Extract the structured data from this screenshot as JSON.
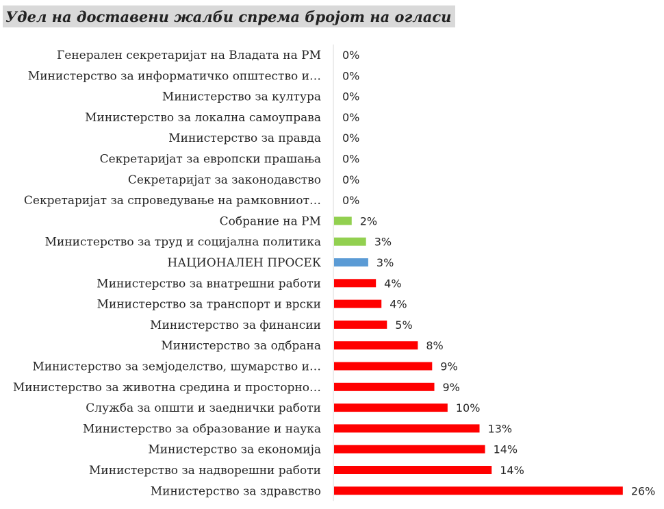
{
  "chart_data": {
    "type": "bar",
    "orientation": "horizontal",
    "title": "Удел на доставени жалби спрема бројот на огласи",
    "xlabel": "",
    "ylabel": "",
    "xlim": [
      0,
      26
    ],
    "grid": false,
    "legend": "none",
    "categories": [
      "Генерален секретаријат на Владата на РМ",
      "Министерство за информатичко општество и…",
      "Министерство за култура",
      "Министерство за локална самоуправа",
      "Министерство за правда",
      "Секретаријат за европски прашања",
      "Секретаријат за законодавство",
      "Секретаријат за спроведување на рамковниот…",
      "Собрание на РМ",
      "Министерство за труд и социјална политика",
      "НАЦИОНАЛЕН ПРОСЕК",
      "Министерство за внатрешни работи",
      "Министерство за транспорт и врски",
      "Министерство за финансии",
      "Министерство за одбрана",
      "Министерство за земјоделство, шумарство и…",
      "Министерство за животна средина и просторно…",
      "Служба за општи и заеднички работи",
      "Министерство за образование и наука",
      "Министерство за економија",
      "Министерство за надворешни работи",
      "Министерство за здравство"
    ],
    "values": [
      0,
      0,
      0,
      0,
      0,
      0,
      0,
      0,
      1.6,
      2.9,
      3.1,
      3.8,
      4.3,
      4.8,
      7.6,
      8.9,
      9.1,
      10.3,
      13.2,
      13.7,
      14.3,
      26.2
    ],
    "value_labels": [
      "0%",
      "0%",
      "0%",
      "0%",
      "0%",
      "0%",
      "0%",
      "0%",
      "2%",
      "3%",
      "3%",
      "4%",
      "4%",
      "5%",
      "8%",
      "9%",
      "9%",
      "10%",
      "13%",
      "14%",
      "14%",
      "26%"
    ],
    "colors": [
      "#ff0000",
      "#ff0000",
      "#ff0000",
      "#ff0000",
      "#ff0000",
      "#ff0000",
      "#ff0000",
      "#ff0000",
      "#92d050",
      "#92d050",
      "#5b9bd5",
      "#ff0000",
      "#ff0000",
      "#ff0000",
      "#ff0000",
      "#ff0000",
      "#ff0000",
      "#ff0000",
      "#ff0000",
      "#ff0000",
      "#ff0000",
      "#ff0000"
    ],
    "axis_color": "#d9d9d9"
  }
}
